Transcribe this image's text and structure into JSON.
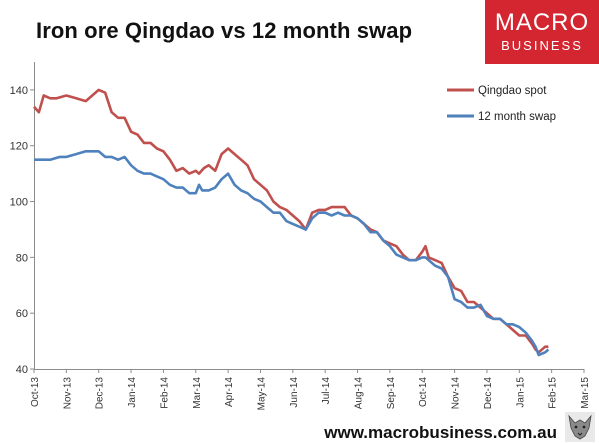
{
  "title": "Iron ore Qingdao vs 12 month swap",
  "logo": {
    "line1": "MACRO",
    "line2": "BUSINESS",
    "brand_color": "#d32630"
  },
  "footer": {
    "url": "www.macrobusiness.com.au",
    "icon": "wolf-mascot-icon"
  },
  "chart_data": {
    "type": "line",
    "title": "Iron ore Qingdao vs 12 month swap",
    "xlabel": "",
    "ylabel": "",
    "x_ticks": [
      "Oct-13",
      "Nov-13",
      "Dec-13",
      "Jan-14",
      "Feb-14",
      "Mar-14",
      "Apr-14",
      "May-14",
      "Jun-14",
      "Jul-14",
      "Aug-14",
      "Sep-14",
      "Oct-14",
      "Nov-14",
      "Dec-14",
      "Jan-15",
      "Feb-15",
      "Mar-15"
    ],
    "y_ticks": [
      40,
      60,
      80,
      100,
      120,
      140
    ],
    "ylim": [
      40,
      150
    ],
    "xlim": [
      0,
      17
    ],
    "grid": false,
    "legend_position": "top-right",
    "series": [
      {
        "name": "Qingdao spot",
        "color": "#c0504d",
        "x": [
          0,
          0.15,
          0.3,
          0.5,
          0.7,
          1,
          1.3,
          1.6,
          2,
          2.2,
          2.4,
          2.6,
          2.8,
          3,
          3.2,
          3.4,
          3.6,
          3.8,
          4,
          4.2,
          4.4,
          4.6,
          4.8,
          5,
          5.1,
          5.25,
          5.4,
          5.6,
          5.8,
          6,
          6.2,
          6.4,
          6.6,
          6.8,
          7,
          7.2,
          7.4,
          7.6,
          7.8,
          8,
          8.2,
          8.4,
          8.6,
          8.8,
          9,
          9.2,
          9.4,
          9.6,
          9.8,
          10,
          10.2,
          10.4,
          10.6,
          10.8,
          11,
          11.2,
          11.4,
          11.6,
          11.8,
          12,
          12.1,
          12.2,
          12.4,
          12.6,
          12.8,
          13,
          13.2,
          13.4,
          13.6,
          13.8,
          14,
          14.2,
          14.4,
          14.6,
          14.8,
          15,
          15.2,
          15.4,
          15.5,
          15.6,
          15.8,
          15.9
        ],
        "values": [
          134,
          132,
          138,
          137,
          137,
          138,
          137,
          136,
          140,
          139,
          132,
          130,
          130,
          125,
          124,
          121,
          121,
          119,
          118,
          115,
          111,
          112,
          110,
          111,
          110,
          112,
          113,
          111,
          117,
          119,
          117,
          115,
          113,
          108,
          106,
          104,
          100,
          98,
          97,
          95,
          93,
          90,
          96,
          97,
          97,
          98,
          98,
          98,
          95,
          94,
          92,
          90,
          89,
          86,
          85,
          84,
          81,
          79,
          79,
          82,
          84,
          80,
          79,
          78,
          73,
          69,
          68,
          64,
          64,
          62,
          60,
          58,
          58,
          56,
          54,
          52,
          52,
          49,
          47,
          46,
          48,
          48
        ]
      },
      {
        "name": "12 month swap",
        "color": "#4f81bd",
        "x": [
          0,
          0.2,
          0.5,
          0.8,
          1,
          1.3,
          1.6,
          2,
          2.2,
          2.4,
          2.6,
          2.8,
          3,
          3.2,
          3.4,
          3.6,
          3.8,
          4,
          4.2,
          4.4,
          4.6,
          4.8,
          5,
          5.1,
          5.2,
          5.4,
          5.6,
          5.8,
          6,
          6.2,
          6.4,
          6.6,
          6.8,
          7,
          7.2,
          7.4,
          7.6,
          7.8,
          8,
          8.2,
          8.4,
          8.6,
          8.8,
          9,
          9.2,
          9.4,
          9.6,
          9.8,
          10,
          10.2,
          10.4,
          10.6,
          10.8,
          11,
          11.2,
          11.4,
          11.6,
          11.8,
          12,
          12.1,
          12.2,
          12.4,
          12.6,
          12.8,
          13,
          13.2,
          13.4,
          13.6,
          13.8,
          14,
          14.2,
          14.4,
          14.6,
          14.8,
          15,
          15.2,
          15.4,
          15.5,
          15.6,
          15.8,
          15.9
        ],
        "values": [
          115,
          115,
          115,
          116,
          116,
          117,
          118,
          118,
          116,
          116,
          115,
          116,
          113,
          111,
          110,
          110,
          109,
          108,
          106,
          105,
          105,
          103,
          103,
          106,
          104,
          104,
          105,
          108,
          110,
          106,
          104,
          103,
          101,
          100,
          98,
          96,
          96,
          93,
          92,
          91,
          90,
          94,
          96,
          96,
          95,
          96,
          95,
          95,
          94,
          92,
          89,
          89,
          86,
          84,
          81,
          80,
          79,
          79,
          80,
          80,
          79,
          77,
          76,
          73,
          65,
          64,
          62,
          62,
          63,
          59,
          58,
          58,
          56,
          56,
          55,
          53,
          50,
          48,
          45,
          46,
          47
        ]
      }
    ]
  }
}
